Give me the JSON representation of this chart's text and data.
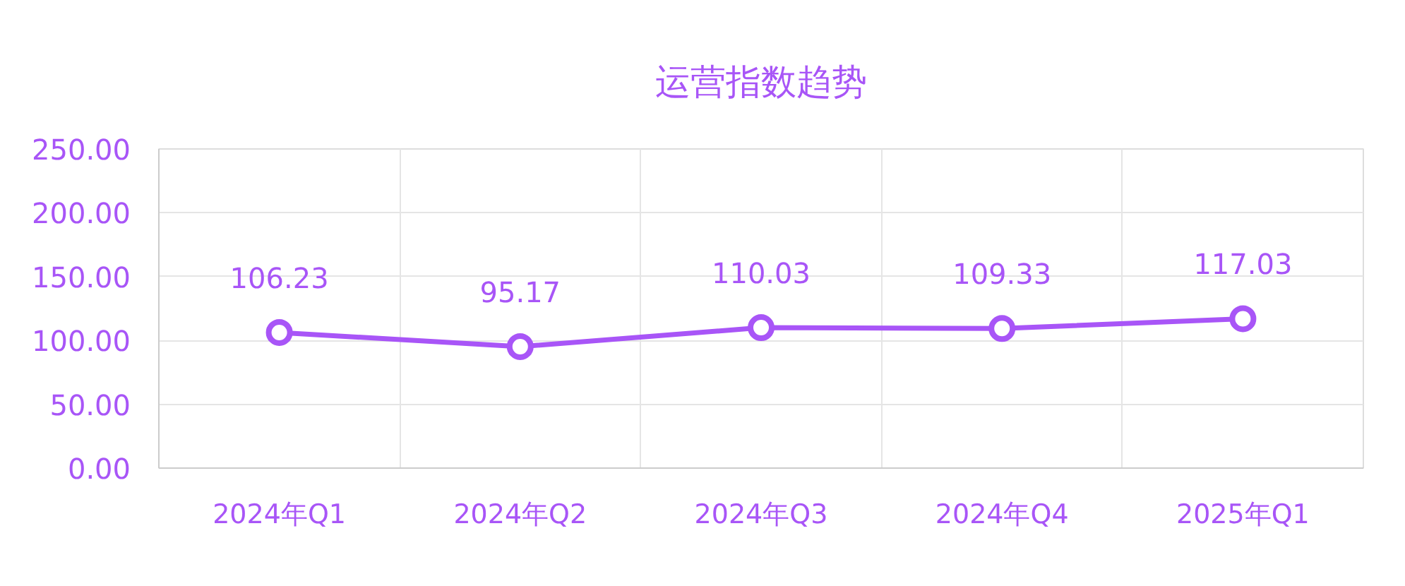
{
  "chart_data": {
    "type": "line",
    "title": "运营指数趋势",
    "categories": [
      "2024年Q1",
      "2024年Q2",
      "2024年Q3",
      "2024年Q4",
      "2025年Q1"
    ],
    "values": [
      106.23,
      95.17,
      110.03,
      109.33,
      117.03
    ],
    "color": "#a855f7",
    "ylim": [
      0,
      250
    ],
    "yticks": [
      {
        "value": 0,
        "label": "0.00"
      },
      {
        "value": 50,
        "label": "50.00"
      },
      {
        "value": 100,
        "label": "100.00"
      },
      {
        "value": 150,
        "label": "150.00"
      },
      {
        "value": 200,
        "label": "200.00"
      },
      {
        "value": 250,
        "label": "250.00"
      }
    ],
    "grid": true,
    "marker": "circle",
    "line_style": "solid",
    "data_labels": true
  }
}
